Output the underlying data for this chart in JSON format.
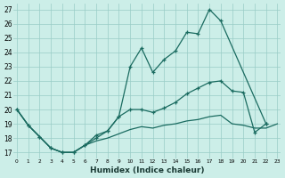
{
  "title": "",
  "xlabel": "Humidex (Indice chaleur)",
  "bg_color": "#cceee8",
  "grid_color": "#99ccc6",
  "line_color": "#1a6b60",
  "x_ticks": [
    0,
    1,
    2,
    3,
    4,
    5,
    6,
    7,
    8,
    9,
    10,
    11,
    12,
    13,
    14,
    15,
    16,
    17,
    18,
    19,
    20,
    21,
    22,
    23
  ],
  "y_ticks": [
    17,
    18,
    19,
    20,
    21,
    22,
    23,
    24,
    25,
    26,
    27
  ],
  "xlim": [
    -0.3,
    23.3
  ],
  "ylim": [
    16.6,
    27.4
  ],
  "line1_x": [
    0,
    1,
    2,
    3,
    4,
    5,
    6,
    7,
    8,
    9,
    10,
    11,
    12,
    13,
    14,
    15,
    16,
    17,
    18,
    22
  ],
  "line1_y": [
    20.0,
    18.9,
    18.1,
    17.3,
    17.0,
    17.0,
    17.5,
    18.2,
    18.5,
    19.5,
    23.0,
    24.3,
    22.6,
    23.5,
    24.1,
    25.4,
    25.3,
    27.0,
    26.2,
    19.0
  ],
  "line2_x": [
    0,
    1,
    2,
    3,
    4,
    5,
    6,
    7,
    8,
    9,
    10,
    11,
    12,
    13,
    14,
    15,
    16,
    17,
    18,
    19,
    20,
    21,
    22
  ],
  "line2_y": [
    20.0,
    18.9,
    18.1,
    17.3,
    17.0,
    17.0,
    17.5,
    18.0,
    18.5,
    19.5,
    20.0,
    20.0,
    19.8,
    20.1,
    20.5,
    21.1,
    21.5,
    21.9,
    22.0,
    21.3,
    21.2,
    18.4,
    19.0
  ],
  "line3_x": [
    0,
    1,
    2,
    3,
    4,
    5,
    6,
    7,
    8,
    9,
    10,
    11,
    12,
    13,
    14,
    15,
    16,
    17,
    18,
    19,
    20,
    21,
    22,
    23
  ],
  "line3_y": [
    20.0,
    18.9,
    18.1,
    17.3,
    17.0,
    17.0,
    17.5,
    17.8,
    18.0,
    18.3,
    18.6,
    18.8,
    18.7,
    18.9,
    19.0,
    19.2,
    19.3,
    19.5,
    19.6,
    19.0,
    18.9,
    18.7,
    18.7,
    19.0
  ]
}
